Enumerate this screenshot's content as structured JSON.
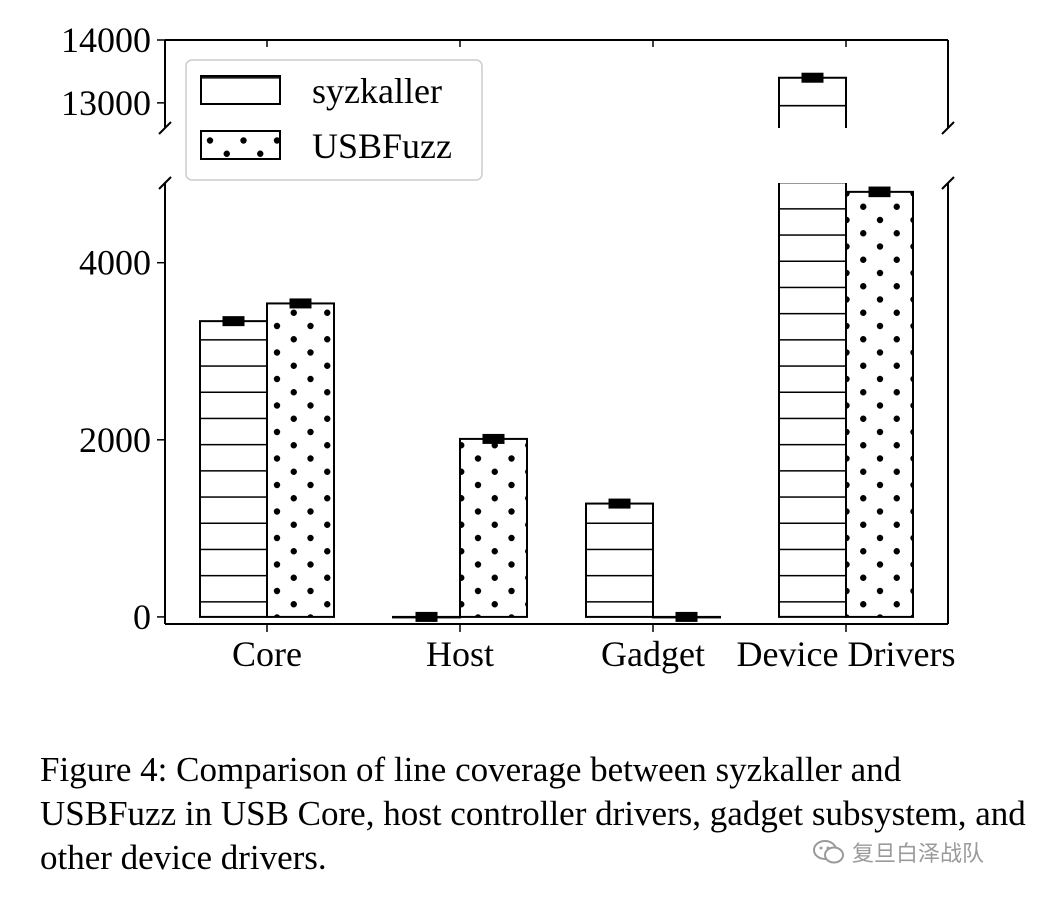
{
  "chart_data": {
    "type": "bar",
    "categories": [
      "Core",
      "Host",
      "Gadget",
      "Device Drivers"
    ],
    "series": [
      {
        "name": "syzkaller",
        "hatch": "horizontal-lines",
        "values": [
          3340,
          0,
          1280,
          13400
        ],
        "errors": [
          50,
          20,
          40,
          60
        ]
      },
      {
        "name": "USBFuzz",
        "hatch": "dots",
        "values": [
          3540,
          2010,
          0,
          4800
        ],
        "errors": [
          50,
          30,
          20,
          60
        ]
      }
    ],
    "y_ticks": [
      0,
      2000,
      4000,
      13000,
      14000
    ],
    "y_broken_axis": {
      "lower_range": [
        -80,
        4900
      ],
      "upper_range": [
        12600,
        14000
      ]
    },
    "legend": {
      "placement": "top-left"
    },
    "grid": false,
    "xlabel": "",
    "ylabel": ""
  },
  "caption": "Figure 4: Comparison of line coverage between syzkaller and USBFuzz in USB Core, host controller drivers, gadget subsystem, and other device drivers.",
  "watermark": {
    "text": "复旦白泽战队",
    "icon": "wechat-icon"
  }
}
